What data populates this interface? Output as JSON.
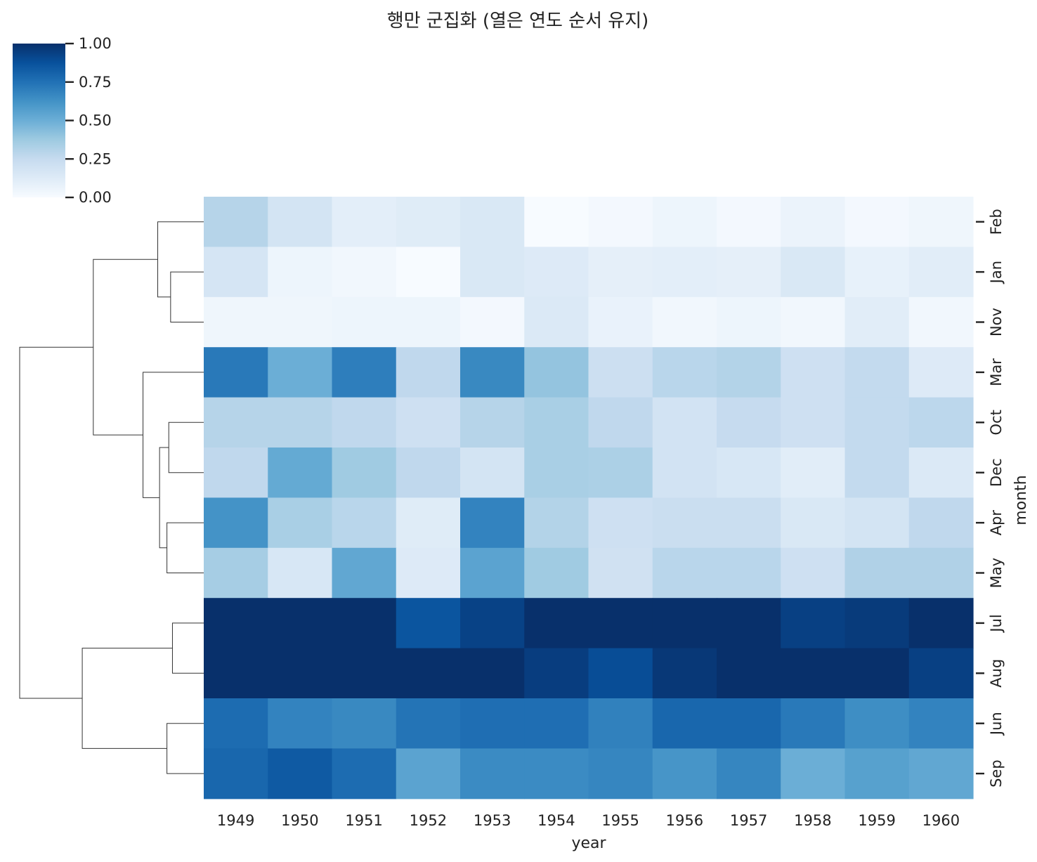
{
  "chart_data": {
    "type": "heatmap",
    "title": "행만 군집화 (열은 연도 순서 유지)",
    "xlabel": "year",
    "ylabel": "month",
    "colormap": "Blues",
    "colorbar": {
      "min": 0,
      "max": 1,
      "ticks": [
        {
          "value": 0.0,
          "label": "0.00"
        },
        {
          "value": 0.25,
          "label": "0.25"
        },
        {
          "value": 0.5,
          "label": "0.50"
        },
        {
          "value": 0.75,
          "label": "0.75"
        },
        {
          "value": 1.0,
          "label": "1.00"
        }
      ]
    },
    "columns": [
      "1949",
      "1950",
      "1951",
      "1952",
      "1953",
      "1954",
      "1955",
      "1956",
      "1957",
      "1958",
      "1959",
      "1960"
    ],
    "rows": [
      "Feb",
      "Jan",
      "Nov",
      "Mar",
      "Oct",
      "Dec",
      "Apr",
      "May",
      "Jul",
      "Aug",
      "Jun",
      "Sep"
    ],
    "values": [
      [
        0.3,
        0.18,
        0.1,
        0.12,
        0.15,
        0.0,
        0.02,
        0.05,
        0.02,
        0.06,
        0.02,
        0.04
      ],
      [
        0.17,
        0.05,
        0.03,
        0.0,
        0.15,
        0.13,
        0.09,
        0.1,
        0.09,
        0.15,
        0.08,
        0.11
      ],
      [
        0.04,
        0.04,
        0.05,
        0.05,
        0.02,
        0.14,
        0.07,
        0.03,
        0.05,
        0.03,
        0.11,
        0.03
      ],
      [
        0.72,
        0.5,
        0.7,
        0.27,
        0.66,
        0.4,
        0.22,
        0.29,
        0.31,
        0.21,
        0.26,
        0.13
      ],
      [
        0.3,
        0.3,
        0.27,
        0.21,
        0.3,
        0.34,
        0.27,
        0.19,
        0.25,
        0.21,
        0.26,
        0.28
      ],
      [
        0.27,
        0.52,
        0.37,
        0.27,
        0.18,
        0.34,
        0.33,
        0.19,
        0.16,
        0.11,
        0.26,
        0.14
      ],
      [
        0.62,
        0.34,
        0.29,
        0.12,
        0.68,
        0.31,
        0.21,
        0.23,
        0.23,
        0.15,
        0.18,
        0.27
      ],
      [
        0.35,
        0.16,
        0.53,
        0.13,
        0.55,
        0.37,
        0.2,
        0.29,
        0.29,
        0.21,
        0.32,
        0.32
      ],
      [
        1.0,
        1.0,
        1.0,
        0.86,
        0.93,
        1.0,
        1.0,
        1.0,
        1.0,
        0.94,
        0.96,
        1.0
      ],
      [
        1.0,
        1.0,
        1.0,
        1.0,
        1.0,
        0.95,
        0.89,
        0.97,
        1.0,
        1.0,
        1.0,
        0.94
      ],
      [
        0.77,
        0.68,
        0.66,
        0.74,
        0.76,
        0.76,
        0.69,
        0.79,
        0.79,
        0.72,
        0.64,
        0.68
      ],
      [
        0.79,
        0.84,
        0.77,
        0.55,
        0.65,
        0.65,
        0.67,
        0.61,
        0.67,
        0.5,
        0.56,
        0.53
      ]
    ],
    "row_dendrogram": {
      "leaf_order": [
        "Feb",
        "Jan",
        "Nov",
        "Mar",
        "Oct",
        "Dec",
        "Apr",
        "May",
        "Jul",
        "Aug",
        "Jun",
        "Sep"
      ],
      "merges": [
        {
          "left": "Jan",
          "right": "Nov",
          "height": 0.18
        },
        {
          "left": "Feb",
          "right": "Jan+Nov",
          "height": 0.25
        },
        {
          "left": "Oct",
          "right": "Dec",
          "height": 0.19
        },
        {
          "left": "Apr",
          "right": "May",
          "height": 0.2
        },
        {
          "left": "Oct+Dec",
          "right": "Apr+May",
          "height": 0.24
        },
        {
          "left": "Mar",
          "right": "Oct+Dec+Apr+May",
          "height": 0.33
        },
        {
          "left": "Feb+Jan+Nov",
          "right": "Mar+Oct+Dec+Apr+May",
          "height": 0.6
        },
        {
          "left": "Jul",
          "right": "Aug",
          "height": 0.17
        },
        {
          "left": "Jun",
          "right": "Sep",
          "height": 0.2
        },
        {
          "left": "Jul+Aug",
          "right": "Jun+Sep",
          "height": 0.66
        },
        {
          "left": "upper",
          "right": "lower",
          "height": 1.0
        }
      ]
    }
  }
}
